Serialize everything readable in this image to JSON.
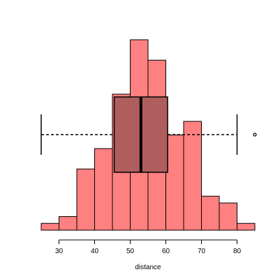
{
  "chart_data": {
    "type": "histogram",
    "xlabel": "distance",
    "ylabel": "",
    "title": "",
    "x_range": [
      25,
      85
    ],
    "x_ticks": [
      30,
      40,
      50,
      60,
      70,
      80
    ],
    "bin_width": 5,
    "bins": [
      {
        "x0": 25,
        "x1": 30,
        "count": 1
      },
      {
        "x0": 30,
        "x1": 35,
        "count": 2
      },
      {
        "x0": 35,
        "x1": 40,
        "count": 9
      },
      {
        "x0": 40,
        "x1": 45,
        "count": 12
      },
      {
        "x0": 45,
        "x1": 50,
        "count": 20
      },
      {
        "x0": 50,
        "x1": 55,
        "count": 28
      },
      {
        "x0": 55,
        "x1": 60,
        "count": 25
      },
      {
        "x0": 60,
        "x1": 65,
        "count": 14
      },
      {
        "x0": 65,
        "x1": 70,
        "count": 16
      },
      {
        "x0": 70,
        "x1": 75,
        "count": 5
      },
      {
        "x0": 75,
        "x1": 80,
        "count": 4
      },
      {
        "x0": 80,
        "x1": 85,
        "count": 1
      }
    ],
    "count_max": 28,
    "boxplot": {
      "whisker_low": 25,
      "q1": 45.5,
      "median": 53,
      "q3": 60.5,
      "whisker_high": 80,
      "outliers": [
        85
      ]
    },
    "colors": {
      "bar_fill": "#ff8080",
      "box_fill": "#b05d5d",
      "stroke": "#000000"
    },
    "grid": false,
    "legend": "none"
  }
}
